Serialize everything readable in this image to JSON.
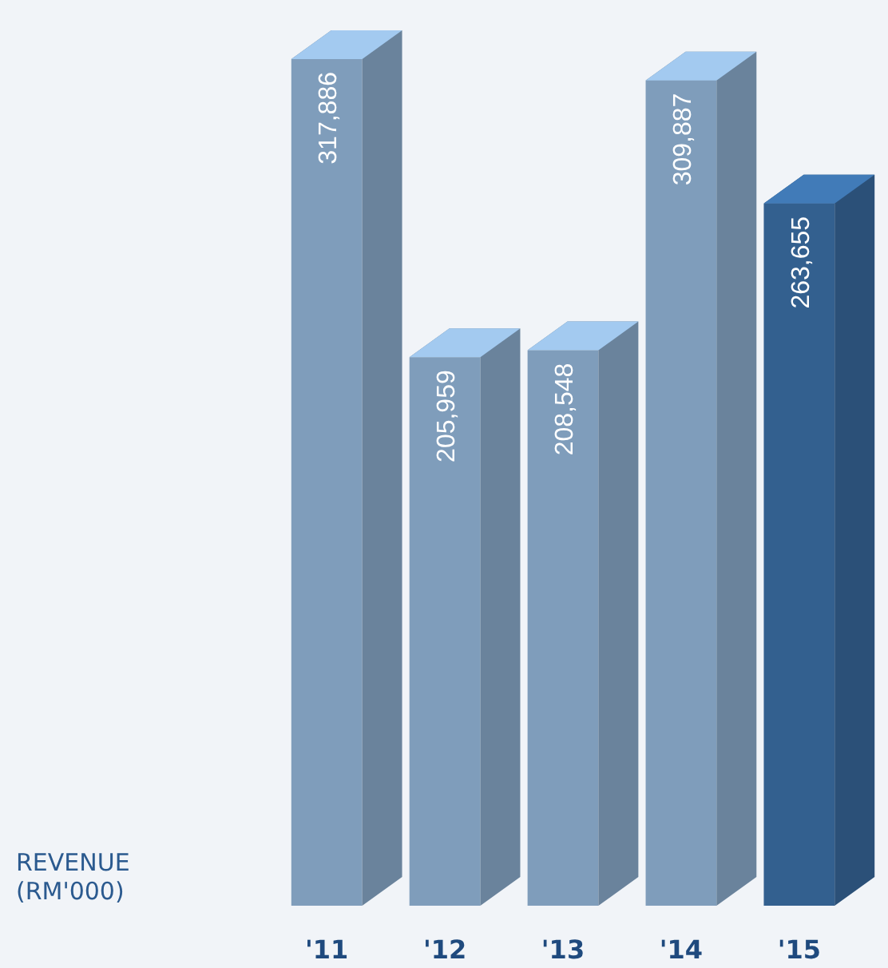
{
  "chart_data": {
    "type": "bar",
    "title": "REVENUE (RM'000)",
    "categories": [
      "'11",
      "'12",
      "'13",
      "'14",
      "'15"
    ],
    "values": [
      317886,
      205959,
      208548,
      309887,
      263655
    ],
    "colors": [
      "#7f9dbb",
      "#7f9dbb",
      "#7f9dbb",
      "#7f9dbb",
      "#33608f"
    ],
    "value_labels": [
      "317,886",
      "205,959",
      "208,548",
      "309,887",
      "263,655"
    ]
  }
}
